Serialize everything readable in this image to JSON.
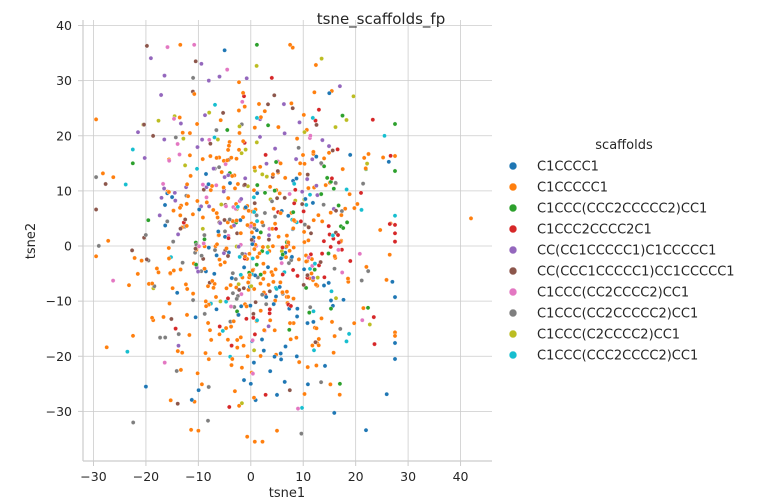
{
  "chart_data": {
    "type": "scatter",
    "title": "tsne_scaffolds_fp",
    "xlabel": "tsne1",
    "ylabel": "tsne2",
    "xlim": [
      -32,
      46
    ],
    "ylim": [
      -39,
      41
    ],
    "xticks": [
      -30,
      -20,
      -10,
      0,
      10,
      20,
      30,
      40
    ],
    "yticks": [
      -30,
      -20,
      -10,
      0,
      10,
      20,
      30,
      40
    ],
    "grid": true,
    "legend": {
      "title": "scaffolds",
      "placement": "right"
    },
    "series": [
      {
        "name": "C1CCCC1",
        "color": "#1f77b4",
        "count": 90,
        "x_mean": 4,
        "y_mean": -8,
        "x_sd": 11,
        "y_sd": 12,
        "points": [
          [
            -5,
            35.5
          ],
          [
            5,
            -27
          ],
          [
            -20,
            -25.5
          ],
          [
            27,
            -6.5
          ],
          [
            0,
            -25
          ]
        ]
      },
      {
        "name": "C1CCCCC1",
        "color": "#ff7f0e",
        "count": 330,
        "x_mean": 0,
        "y_mean": 0,
        "x_sd": 11,
        "y_sd": 14,
        "points": [
          [
            42,
            5
          ],
          [
            7.5,
            36.5
          ],
          [
            8,
            36
          ],
          [
            -10,
            -33.5
          ],
          [
            5,
            -33.5
          ]
        ]
      },
      {
        "name": "C1CCC(CCC2CCCCC2)CC1",
        "color": "#2ca02c",
        "count": 45,
        "x_mean": 6,
        "y_mean": 2,
        "x_sd": 12,
        "y_sd": 12,
        "points": [
          [
            17,
            -25
          ],
          [
            -22.5,
            15
          ]
        ]
      },
      {
        "name": "C1CCC2CCCC2C1",
        "color": "#d62728",
        "count": 60,
        "x_mean": 8,
        "y_mean": 0,
        "x_sd": 10,
        "y_sd": 12,
        "points": [
          [
            4,
            30.5
          ],
          [
            26.5,
            4
          ]
        ]
      },
      {
        "name": "CC(CC1CCCCC1)C1CCCCC1",
        "color": "#9467bd",
        "count": 60,
        "x_mean": -2,
        "y_mean": 12,
        "x_sd": 10,
        "y_sd": 10,
        "points": [
          [
            -8,
            30
          ],
          [
            17,
            29
          ]
        ]
      },
      {
        "name": "CC(CCC1CCCCC1)CC1CCCCC1",
        "color": "#8c564b",
        "count": 60,
        "x_mean": -2,
        "y_mean": 2,
        "x_sd": 12,
        "y_sd": 12,
        "points": [
          [
            -10.5,
            33.5
          ],
          [
            8,
            25
          ]
        ]
      },
      {
        "name": "C1CCC(CC2CCCC2)CC1",
        "color": "#e377c2",
        "count": 45,
        "x_mean": -4,
        "y_mean": 2,
        "x_sd": 12,
        "y_sd": 13,
        "points": [
          [
            -4.5,
            32
          ],
          [
            9,
            -29.5
          ]
        ]
      },
      {
        "name": "C1CCC(CC2CCCCC2)CC1",
        "color": "#7f7f7f",
        "count": 70,
        "x_mean": -3,
        "y_mean": -3,
        "x_sd": 12,
        "y_sd": 12,
        "points": [
          [
            -29.5,
            12.5
          ],
          [
            -11,
            30.5
          ]
        ]
      },
      {
        "name": "C1CCC(C2CCCC2)CC1",
        "color": "#bcbd22",
        "count": 40,
        "x_mean": 2,
        "y_mean": 8,
        "x_sd": 11,
        "y_sd": 11,
        "points": [
          [
            13.5,
            34
          ],
          [
            -20.5,
            22
          ]
        ]
      },
      {
        "name": "C1CCC(CCC2CCCC2)CC1",
        "color": "#17becf",
        "count": 45,
        "x_mean": 5,
        "y_mean": 2,
        "x_sd": 12,
        "y_sd": 12,
        "points": [
          [
            -22.5,
            17.5
          ],
          [
            25.5,
            20
          ]
        ]
      }
    ]
  }
}
